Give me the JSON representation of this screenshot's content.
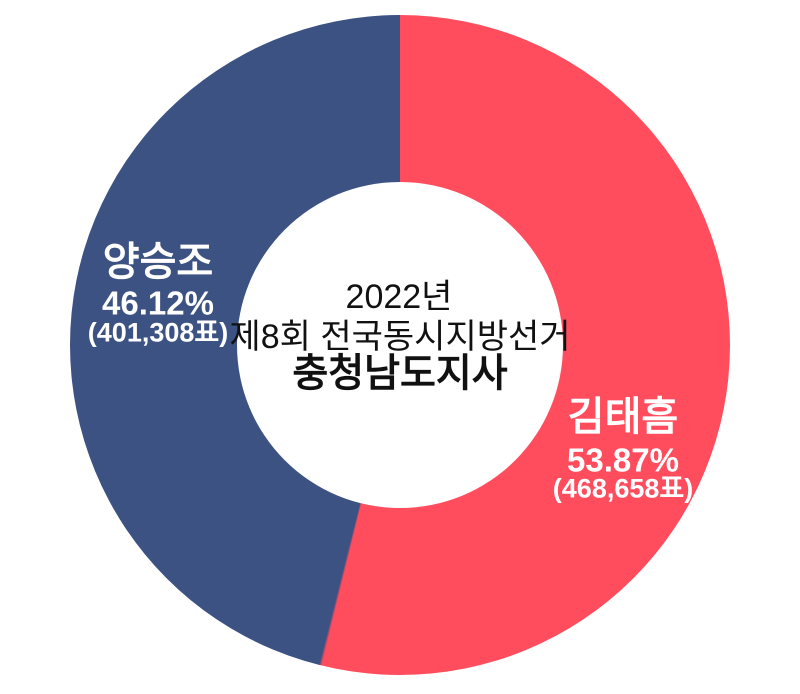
{
  "chart_data": {
    "type": "pie",
    "subtype": "donut",
    "title_lines": [
      "2022년",
      "제8회 전국동시지방선거",
      "충청남도지사"
    ],
    "start_angle_deg": 0,
    "direction": "clockwise",
    "legend_position": "none",
    "hole_color": "#FFFFFF",
    "background_color": "#FFFFFF",
    "title_text_color": "#111111",
    "segment_label_text_color": "#FFFFFF",
    "segments": [
      {
        "name": "김태흠",
        "pct": 53.87,
        "pct_label": "53.87%",
        "votes": 468658,
        "votes_label": "(468,658표)",
        "color": "#FF4D5E",
        "label_side": "right"
      },
      {
        "name": "양승조",
        "pct": 46.12,
        "pct_label": "46.12%",
        "votes": 401308,
        "votes_label": "(401,308표)",
        "color": "#3C5282",
        "label_side": "left"
      }
    ]
  }
}
